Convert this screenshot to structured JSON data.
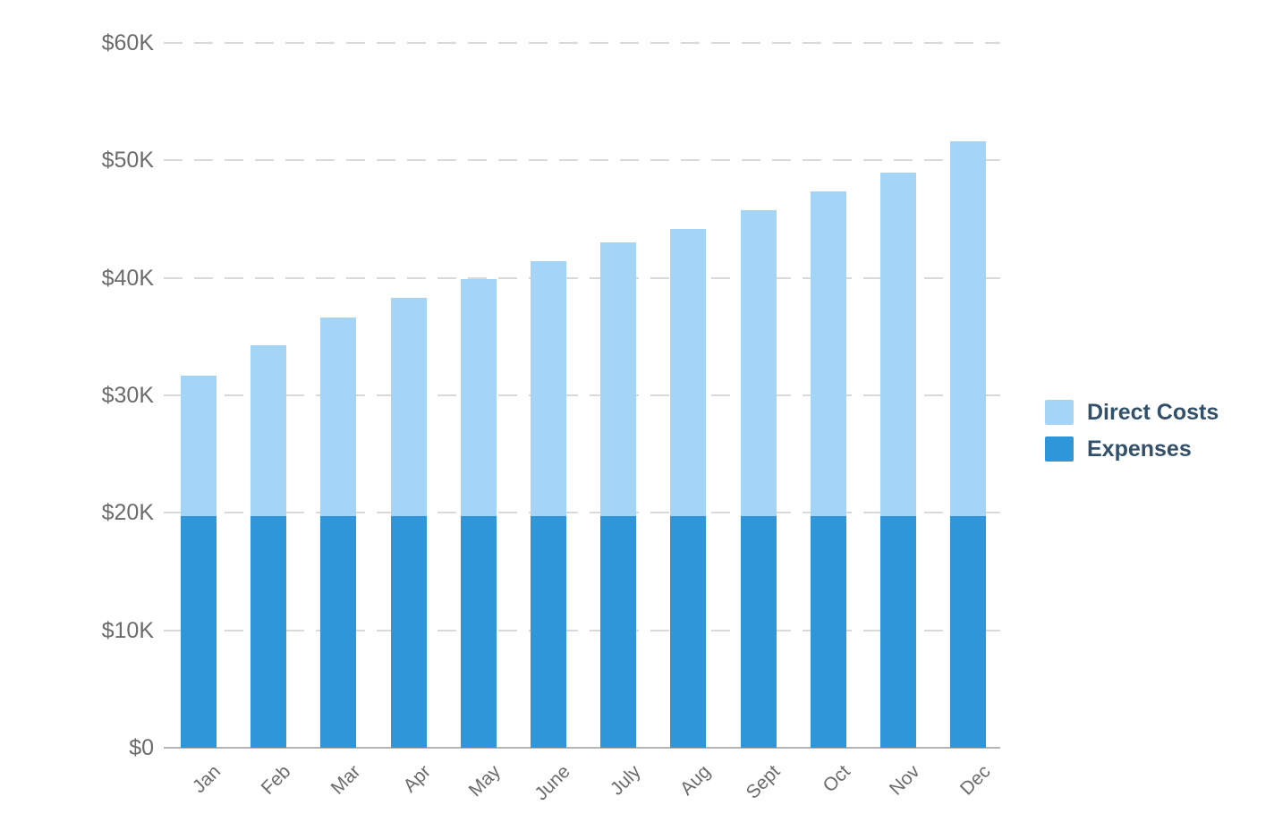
{
  "chart_data": {
    "type": "bar",
    "stacked": true,
    "title": "",
    "categories": [
      "Jan",
      "Feb",
      "Mar",
      "Apr",
      "May",
      "June",
      "July",
      "Aug",
      "Sept",
      "Oct",
      "Nov",
      "Dec"
    ],
    "series": [
      {
        "name": "Direct Costs",
        "color": "#A5D5F6",
        "values": [
          12.0,
          14.6,
          16.9,
          18.6,
          20.2,
          21.7,
          23.3,
          24.5,
          26.1,
          27.7,
          29.3,
          31.9
        ]
      },
      {
        "name": "Expenses",
        "color": "#2E96D9",
        "values": [
          19.7,
          19.7,
          19.7,
          19.7,
          19.7,
          19.7,
          19.7,
          19.7,
          19.7,
          19.7,
          19.7,
          19.7
        ]
      }
    ],
    "stacked_totals": [
      31.7,
      34.3,
      36.6,
      38.3,
      39.9,
      41.4,
      43.0,
      44.2,
      45.8,
      47.4,
      49.0,
      51.6
    ],
    "value_unit": "USD thousands",
    "ylim": [
      0,
      60
    ],
    "y_ticks": [
      {
        "value": 0,
        "label": "$0"
      },
      {
        "value": 10,
        "label": "$10K"
      },
      {
        "value": 20,
        "label": "$20K"
      },
      {
        "value": 30,
        "label": "$30K"
      },
      {
        "value": 40,
        "label": "$40K"
      },
      {
        "value": 50,
        "label": "$50K"
      },
      {
        "value": 60,
        "label": "$60K"
      }
    ],
    "grid": "horizontal-dashed",
    "legend_position": "right-middle",
    "x_label_rotation": -45
  },
  "legend": {
    "items": [
      {
        "label": "Direct Costs",
        "color": "#A5D5F6"
      },
      {
        "label": "Expenses",
        "color": "#2E96D9"
      }
    ]
  },
  "colors": {
    "direct_costs": "#A5D5F6",
    "expenses": "#2E96D9",
    "grid_line": "#D9D9D9",
    "axis_line": "#B5B5B5",
    "axis_text": "#6B6B6B",
    "legend_text": "#33506B",
    "background": "#FFFFFF"
  }
}
